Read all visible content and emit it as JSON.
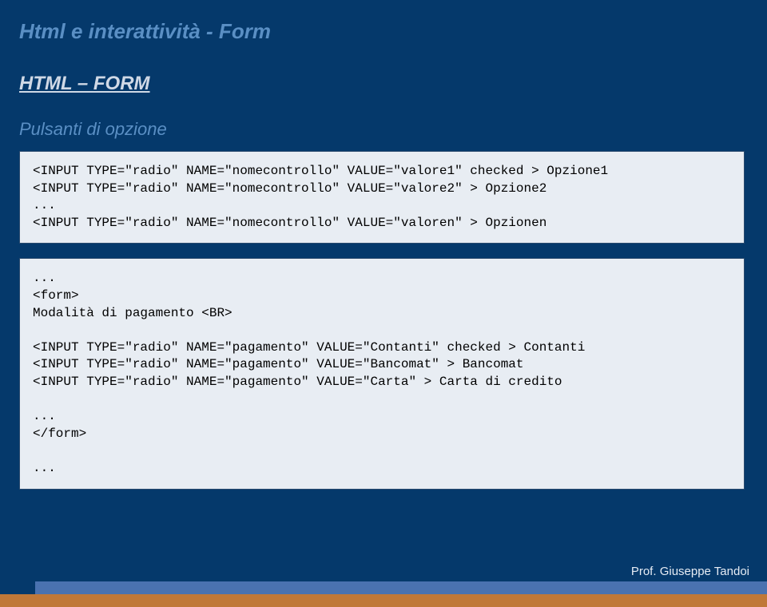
{
  "page": {
    "title": "Html e interattività - Form",
    "section": "HTML – FORM",
    "subtitle": "Pulsanti di opzione",
    "author": "Prof. Giuseppe Tandoi"
  },
  "codebox1": "<INPUT TYPE=\"radio\" NAME=\"nomecontrollo\" VALUE=\"valore1\" checked > Opzione1\n<INPUT TYPE=\"radio\" NAME=\"nomecontrollo\" VALUE=\"valore2\" > Opzione2\n...\n<INPUT TYPE=\"radio\" NAME=\"nomecontrollo\" VALUE=\"valoren\" > Opzionen",
  "codebox2": "...\n<form>\nModalità di pagamento <BR>\n\n<INPUT TYPE=\"radio\" NAME=\"pagamento\" VALUE=\"Contanti\" checked > Contanti\n<INPUT TYPE=\"radio\" NAME=\"pagamento\" VALUE=\"Bancomat\" > Bancomat\n<INPUT TYPE=\"radio\" NAME=\"pagamento\" VALUE=\"Carta\" > Carta di credito\n\n...\n</form>\n\n...",
  "colors": {
    "background": "#05396b",
    "title": "#5a8fc4",
    "section": "#d0d9e6",
    "codebox_bg": "#e8edf3",
    "codebox_border": "#2a4a6e",
    "bar_blue": "#4a72b0",
    "bar_orange": "#c07838",
    "author": "#e6ecf4"
  }
}
